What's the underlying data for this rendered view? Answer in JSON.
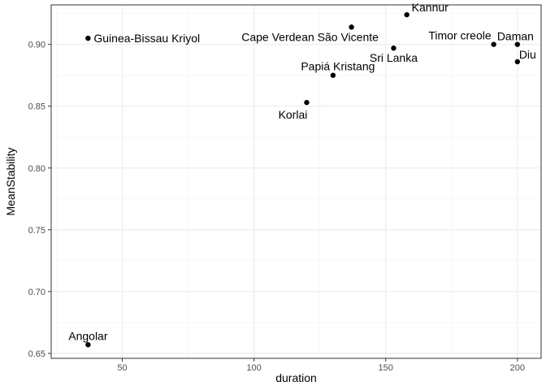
{
  "chart_data": {
    "type": "scatter",
    "xlabel": "duration",
    "ylabel": "MeanStability",
    "xlim": [
      23,
      209
    ],
    "ylim": [
      0.646,
      0.932
    ],
    "x_ticks": [
      50,
      100,
      150,
      200
    ],
    "y_ticks": [
      0.65,
      0.7,
      0.75,
      0.8,
      0.85,
      0.9
    ],
    "y_tick_labels": [
      "0.65",
      "0.70",
      "0.75",
      "0.80",
      "0.85",
      "0.90"
    ],
    "grid": true,
    "points": [
      {
        "label": "Guinea-Bissau Kriyol",
        "x": 37,
        "y": 0.905
      },
      {
        "label": "Angolar",
        "x": 37,
        "y": 0.657
      },
      {
        "label": "Korlai",
        "x": 120,
        "y": 0.853
      },
      {
        "label": "Papiá Kristang",
        "x": 130,
        "y": 0.875
      },
      {
        "label": "Cape Verdean São Vicente",
        "x": 137,
        "y": 0.914
      },
      {
        "label": "Sri Lanka",
        "x": 153,
        "y": 0.897
      },
      {
        "label": "Kannur",
        "x": 158,
        "y": 0.924
      },
      {
        "label": "Timor creole",
        "x": 191,
        "y": 0.9
      },
      {
        "label": "Daman",
        "x": 200,
        "y": 0.9
      },
      {
        "label": "Diu",
        "x": 200,
        "y": 0.886
      }
    ]
  }
}
